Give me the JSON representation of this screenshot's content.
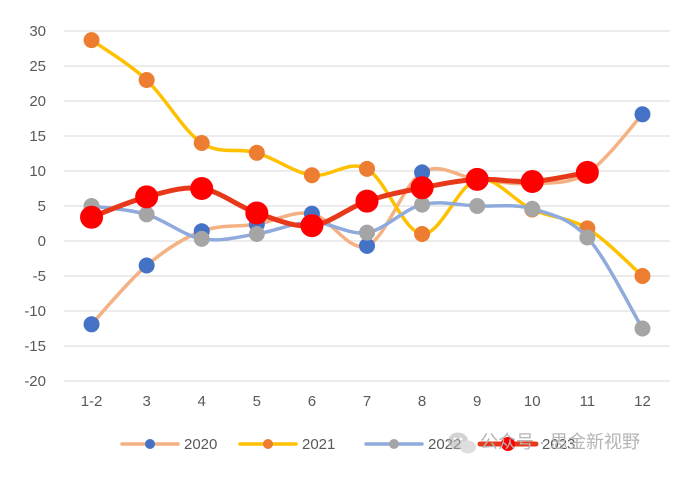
{
  "chart_data": {
    "type": "line",
    "categories": [
      "1-2",
      "3",
      "4",
      "5",
      "6",
      "7",
      "8",
      "9",
      "10",
      "11",
      "12"
    ],
    "ylim": [
      -20,
      30
    ],
    "yticks": [
      30,
      25,
      20,
      15,
      10,
      5,
      0,
      -5,
      -10,
      -15,
      -20
    ],
    "grid": true,
    "legend_position": "bottom",
    "series": [
      {
        "name": "2020",
        "line_color": "#F4B183",
        "marker_color": "#4472C4",
        "values": [
          -11.9,
          -3.5,
          1.4,
          2.4,
          3.9,
          -0.7,
          9.8,
          8.8,
          8.2,
          9.7,
          18.1
        ]
      },
      {
        "name": "2021",
        "line_color": "#FFC000",
        "marker_color": "#ED7D31",
        "values": [
          28.7,
          23.0,
          14.0,
          12.6,
          9.4,
          10.3,
          1.0,
          8.8,
          4.5,
          1.8,
          -5.0
        ]
      },
      {
        "name": "2022",
        "line_color": "#8FAADC",
        "marker_color": "#A5A5A5",
        "values": [
          5.0,
          3.8,
          0.3,
          1.0,
          2.7,
          1.2,
          5.2,
          5.0,
          4.6,
          0.5,
          -12.5
        ]
      },
      {
        "name": "2023",
        "line_color": "#E8381A",
        "marker_color": "#FF0000",
        "values": [
          3.4,
          6.3,
          7.5,
          4.0,
          2.2,
          5.7,
          7.6,
          8.8,
          8.5,
          9.8,
          null
        ]
      }
    ]
  },
  "watermark": {
    "text": "公众号 · 思金新视野",
    "icon": "wechat-icon"
  }
}
